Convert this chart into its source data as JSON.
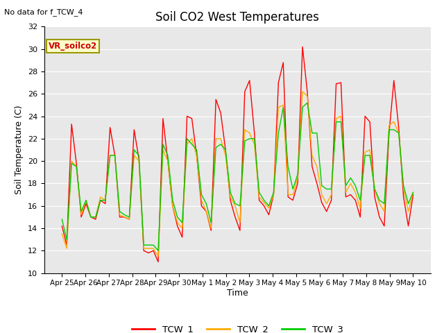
{
  "title": "Soil CO2 West Temperatures",
  "no_data_label": "No data for f_TCW_4",
  "vr_label": "VR_soilco2",
  "xlabel": "Time",
  "ylabel": "Soil Temperature (C)",
  "ylim": [
    10,
    32
  ],
  "yticks": [
    10,
    12,
    14,
    16,
    18,
    20,
    22,
    24,
    26,
    28,
    30,
    32
  ],
  "xtick_labels": [
    "Apr 25",
    "Apr 26",
    "Apr 27",
    "Apr 28",
    "Apr 29",
    "Apr 30",
    "May 1",
    "May 2",
    "May 3",
    "May 4",
    "May 5",
    "May 6",
    "May 7",
    "May 8",
    "May 9",
    "May 10"
  ],
  "bg_color": "#e8e8e8",
  "line_colors": {
    "TCW_1": "#ff0000",
    "TCW_2": "#ffaa00",
    "TCW_3": "#00cc00"
  },
  "legend_entries": [
    "TCW_1",
    "TCW_2",
    "TCW_3"
  ],
  "TCW_1": [
    14.2,
    12.5,
    23.3,
    19.8,
    15.0,
    16.2,
    15.0,
    14.8,
    16.5,
    16.2,
    23.0,
    20.5,
    15.0,
    15.0,
    14.8,
    22.8,
    20.2,
    12.0,
    11.8,
    12.0,
    11.0,
    23.8,
    20.0,
    16.0,
    14.2,
    13.2,
    24.0,
    23.8,
    20.5,
    16.0,
    15.5,
    13.8,
    25.5,
    24.3,
    21.0,
    16.5,
    15.0,
    13.8,
    26.2,
    27.2,
    22.5,
    16.5,
    16.0,
    15.2,
    17.0,
    27.0,
    28.8,
    16.8,
    16.5,
    18.0,
    30.2,
    26.2,
    19.5,
    18.0,
    16.3,
    15.5,
    16.5,
    26.9,
    27.0,
    16.8,
    17.0,
    16.5,
    15.0,
    24.0,
    23.5,
    16.8,
    15.0,
    14.2,
    22.5,
    27.2,
    23.0,
    16.8,
    14.2,
    17.0
  ],
  "TCW_2": [
    13.5,
    12.2,
    20.0,
    19.5,
    15.2,
    16.5,
    15.0,
    15.0,
    16.8,
    16.5,
    20.5,
    20.5,
    15.2,
    15.0,
    14.8,
    20.5,
    20.0,
    12.2,
    12.2,
    12.2,
    11.5,
    21.0,
    20.0,
    16.0,
    14.5,
    14.0,
    21.5,
    22.0,
    20.5,
    16.5,
    15.5,
    14.0,
    22.0,
    22.0,
    20.5,
    16.8,
    16.0,
    14.5,
    22.8,
    22.5,
    21.5,
    16.8,
    16.3,
    15.8,
    17.0,
    24.8,
    25.0,
    17.0,
    17.0,
    18.5,
    26.2,
    25.8,
    20.5,
    19.5,
    17.0,
    16.2,
    17.0,
    23.8,
    24.0,
    17.2,
    18.0,
    17.2,
    15.8,
    20.8,
    21.0,
    17.5,
    16.2,
    15.5,
    23.2,
    23.5,
    22.5,
    17.5,
    15.5,
    17.2
  ],
  "TCW_3": [
    14.8,
    13.0,
    19.8,
    19.5,
    15.5,
    16.5,
    15.0,
    15.0,
    16.5,
    16.5,
    20.5,
    20.5,
    15.5,
    15.2,
    15.0,
    21.0,
    20.5,
    12.5,
    12.5,
    12.5,
    12.0,
    21.5,
    20.5,
    16.5,
    15.0,
    14.5,
    22.0,
    21.5,
    21.0,
    17.0,
    16.2,
    14.5,
    21.2,
    21.5,
    21.0,
    17.2,
    16.2,
    16.0,
    21.8,
    22.0,
    22.0,
    17.2,
    16.5,
    16.0,
    17.2,
    22.5,
    24.8,
    19.5,
    17.5,
    18.8,
    24.8,
    25.2,
    22.5,
    22.5,
    17.8,
    17.5,
    17.5,
    23.5,
    23.5,
    17.8,
    18.5,
    17.8,
    16.5,
    20.5,
    20.5,
    17.5,
    16.5,
    16.2,
    22.8,
    22.8,
    22.5,
    17.8,
    16.2,
    17.2
  ]
}
